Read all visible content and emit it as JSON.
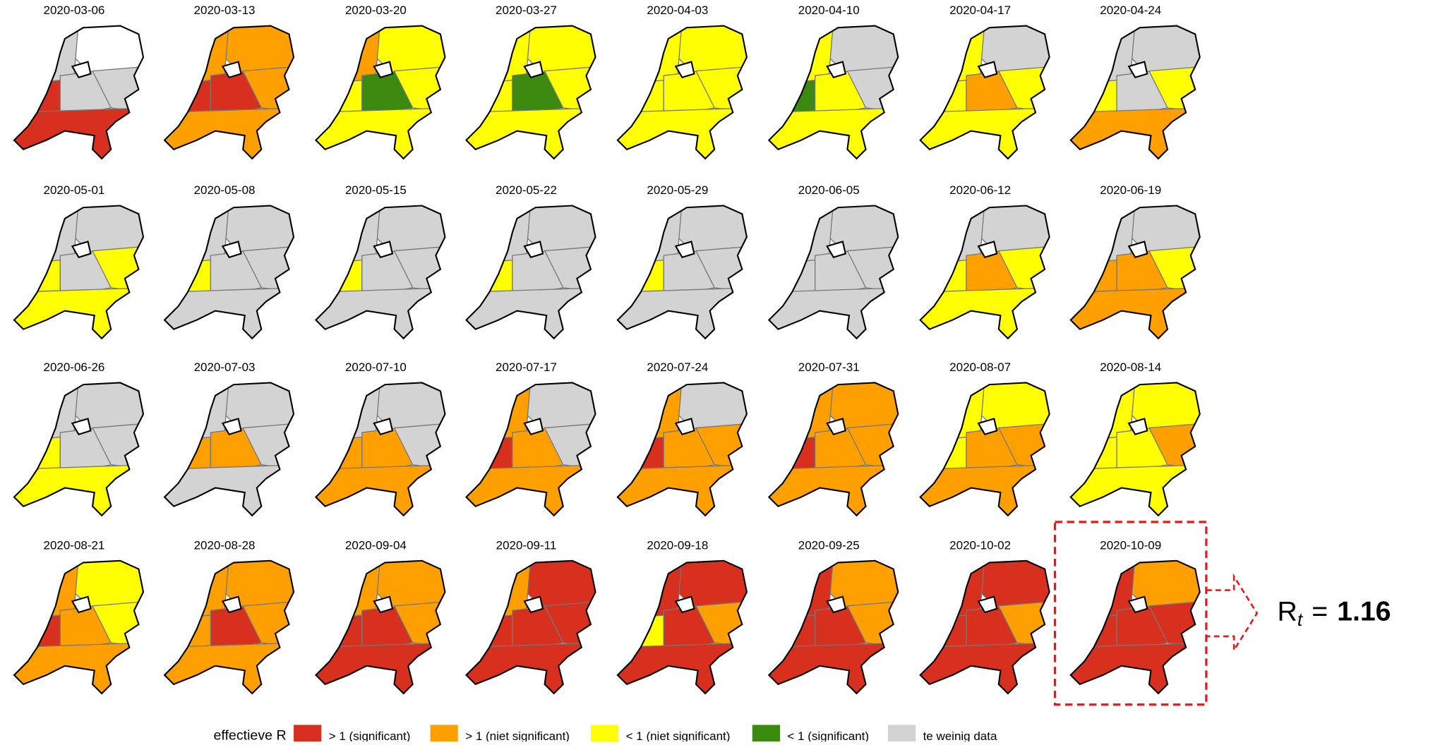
{
  "legend": {
    "title": "effectieve R",
    "items": [
      {
        "label": "> 1 (significant)",
        "color": "#d7301f"
      },
      {
        "label": "> 1 (niet significant)",
        "color": "#ff9f00"
      },
      {
        "label": "< 1 (niet significant)",
        "color": "#ffff00"
      },
      {
        "label": "< 1 (significant)",
        "color": "#3b8a0f"
      },
      {
        "label": "te weinig data",
        "color": "#d3d3d3"
      }
    ]
  },
  "maps": [
    {
      "date": "2020-03-06",
      "zones": [
        null,
        4,
        0,
        4,
        4,
        0
      ]
    },
    {
      "date": "2020-03-13",
      "zones": [
        1,
        1,
        0,
        0,
        1,
        1
      ]
    },
    {
      "date": "2020-03-20",
      "zones": [
        2,
        1,
        2,
        3,
        2,
        2
      ]
    },
    {
      "date": "2020-03-27",
      "zones": [
        2,
        2,
        2,
        3,
        2,
        2
      ]
    },
    {
      "date": "2020-04-03",
      "zones": [
        2,
        2,
        2,
        2,
        2,
        2
      ]
    },
    {
      "date": "2020-04-10",
      "zones": [
        4,
        2,
        3,
        2,
        4,
        2
      ]
    },
    {
      "date": "2020-04-17",
      "zones": [
        4,
        2,
        2,
        1,
        2,
        2
      ]
    },
    {
      "date": "2020-04-24",
      "zones": [
        4,
        4,
        2,
        4,
        2,
        1
      ]
    },
    {
      "date": "2020-05-01",
      "zones": [
        4,
        4,
        2,
        4,
        2,
        2
      ]
    },
    {
      "date": "2020-05-08",
      "zones": [
        4,
        4,
        2,
        4,
        4,
        4
      ]
    },
    {
      "date": "2020-05-15",
      "zones": [
        4,
        4,
        2,
        4,
        4,
        4
      ]
    },
    {
      "date": "2020-05-22",
      "zones": [
        4,
        4,
        2,
        4,
        4,
        4
      ]
    },
    {
      "date": "2020-05-29",
      "zones": [
        4,
        4,
        2,
        4,
        4,
        4
      ]
    },
    {
      "date": "2020-06-05",
      "zones": [
        4,
        4,
        4,
        4,
        4,
        4
      ]
    },
    {
      "date": "2020-06-12",
      "zones": [
        4,
        4,
        2,
        1,
        2,
        2
      ]
    },
    {
      "date": "2020-06-19",
      "zones": [
        4,
        4,
        1,
        1,
        2,
        1
      ]
    },
    {
      "date": "2020-06-26",
      "zones": [
        4,
        4,
        2,
        4,
        4,
        2
      ]
    },
    {
      "date": "2020-07-03",
      "zones": [
        4,
        4,
        1,
        1,
        4,
        4
      ]
    },
    {
      "date": "2020-07-10",
      "zones": [
        4,
        4,
        1,
        1,
        4,
        1
      ]
    },
    {
      "date": "2020-07-17",
      "zones": [
        4,
        1,
        0,
        1,
        4,
        1
      ]
    },
    {
      "date": "2020-07-24",
      "zones": [
        4,
        1,
        0,
        1,
        1,
        1
      ]
    },
    {
      "date": "2020-07-31",
      "zones": [
        1,
        1,
        0,
        1,
        1,
        1
      ]
    },
    {
      "date": "2020-08-07",
      "zones": [
        2,
        2,
        2,
        1,
        1,
        1
      ]
    },
    {
      "date": "2020-08-14",
      "zones": [
        2,
        2,
        2,
        2,
        1,
        2
      ]
    },
    {
      "date": "2020-08-21",
      "zones": [
        2,
        1,
        0,
        1,
        2,
        1
      ]
    },
    {
      "date": "2020-08-28",
      "zones": [
        1,
        1,
        1,
        0,
        1,
        1
      ]
    },
    {
      "date": "2020-09-04",
      "zones": [
        1,
        1,
        0,
        0,
        1,
        0
      ]
    },
    {
      "date": "2020-09-11",
      "zones": [
        0,
        1,
        0,
        0,
        0,
        0
      ]
    },
    {
      "date": "2020-09-18",
      "zones": [
        0,
        0,
        2,
        0,
        1,
        0
      ]
    },
    {
      "date": "2020-09-25",
      "zones": [
        1,
        0,
        0,
        0,
        1,
        0
      ]
    },
    {
      "date": "2020-10-02",
      "zones": [
        0,
        0,
        0,
        0,
        1,
        0
      ]
    },
    {
      "date": "2020-10-09",
      "zones": [
        1,
        0,
        0,
        0,
        0,
        0
      ]
    }
  ],
  "annotation": {
    "symbol": "R",
    "subscript": "t",
    "operator": "=",
    "value": 1.16
  }
}
